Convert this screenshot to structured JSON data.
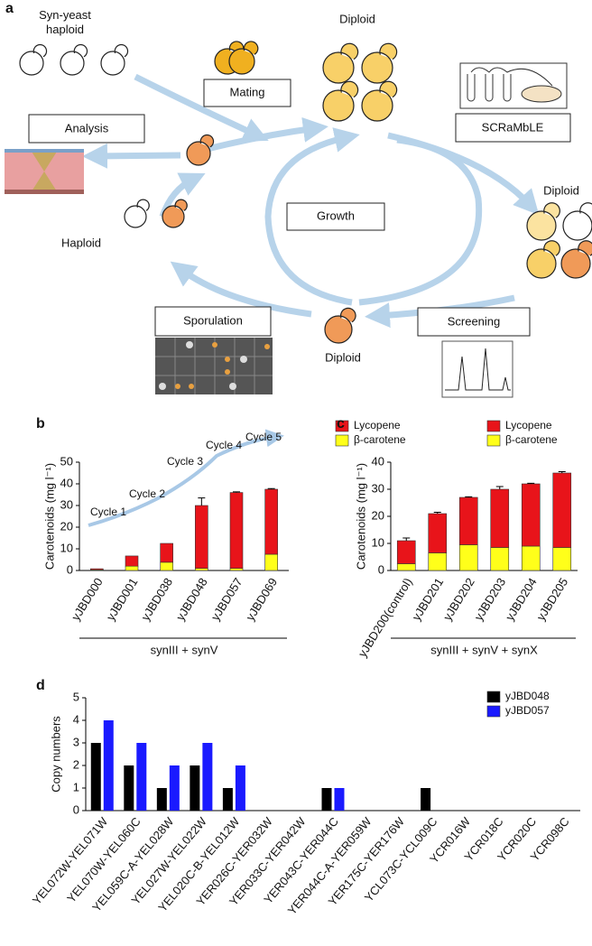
{
  "diagram": {
    "panel_label": "a",
    "nodes": [
      {
        "label": "Syn-yeast haploid"
      },
      {
        "label": "Diploid"
      },
      {
        "label": "Mating"
      },
      {
        "label": "SCRaMbLE"
      },
      {
        "label": "Analysis"
      },
      {
        "label": "Diploid"
      },
      {
        "label": "Growth"
      },
      {
        "label": "Haploid"
      },
      {
        "label": "Sporulation"
      },
      {
        "label": "Diploid"
      },
      {
        "label": "Screening"
      }
    ]
  },
  "chart_data": [
    {
      "type": "bar",
      "stacked": true,
      "panel_label": "b",
      "ylabel": "Carotenoids (mg l⁻¹)",
      "xlabel": "synIII + synV",
      "categories": [
        "yJBD000",
        "yJBD001",
        "yJBD038",
        "yJBD048",
        "yJBD057",
        "yJBD069"
      ],
      "series": [
        {
          "name": "β-carotene",
          "color": "#ffff1a",
          "values": [
            0.3,
            2,
            3.8,
            1,
            1,
            7.5
          ]
        },
        {
          "name": "Lycopene",
          "color": "#e8141a",
          "values": [
            0.5,
            4.7,
            8.7,
            29,
            35,
            30
          ],
          "errors": [
            0,
            0,
            0,
            3.5,
            0.3,
            0.3
          ]
        }
      ],
      "annotations": [
        "Cycle 1",
        "Cycle 2",
        "Cycle 3",
        "Cycle 4",
        "Cycle 5"
      ],
      "ylim": [
        0,
        50
      ],
      "yticks": [
        0,
        10,
        20,
        30,
        40,
        50
      ]
    },
    {
      "type": "bar",
      "stacked": true,
      "panel_label": "c",
      "ylabel": "Carotenoids (mg l⁻¹)",
      "xlabel": "synIII + synV + synX",
      "categories": [
        "yJBD200(control)",
        "yJBD201",
        "yJBD202",
        "yJBD203",
        "yJBD204",
        "yJBD205"
      ],
      "series": [
        {
          "name": "β-carotene",
          "color": "#ffff1a",
          "values": [
            2.5,
            6.5,
            9.5,
            8.5,
            9,
            8.5
          ]
        },
        {
          "name": "Lycopene",
          "color": "#e8141a",
          "values": [
            8.5,
            14.5,
            17.5,
            21.5,
            23,
            27.5
          ],
          "errors": [
            1,
            0.5,
            0.2,
            1,
            0.2,
            0.5
          ]
        }
      ],
      "ylim": [
        0,
        40
      ],
      "yticks": [
        0,
        10,
        20,
        30,
        40
      ]
    },
    {
      "type": "bar",
      "stacked": false,
      "panel_label": "d",
      "ylabel": "Copy numbers",
      "categories": [
        "YEL072W-YEL071W",
        "YEL070W-YEL060C",
        "YEL059C-A-YEL028W",
        "YEL027W-YEL022W",
        "YEL020C-B-YEL012W",
        "YER026C-YER032W",
        "YER033C-YER042W",
        "YER043C-YER044C",
        "YER044C-A-YER059W",
        "YER175C-YER176W",
        "YCL073C-YCL009C",
        "YCR016W",
        "YCR018C",
        "YCR020C",
        "YCR098C"
      ],
      "series": [
        {
          "name": "yJBD048",
          "color": "#000000",
          "values": [
            3,
            2,
            1,
            2,
            1,
            0,
            0,
            1,
            0,
            0,
            1,
            0,
            0,
            0,
            0
          ]
        },
        {
          "name": "yJBD057",
          "color": "#1a1aff",
          "values": [
            4,
            3,
            2,
            3,
            2,
            0,
            0,
            1,
            0,
            0,
            0,
            0,
            0,
            0,
            0
          ]
        }
      ],
      "ylim": [
        0,
        5
      ],
      "yticks": [
        0,
        1,
        2,
        3,
        4,
        5
      ]
    }
  ]
}
